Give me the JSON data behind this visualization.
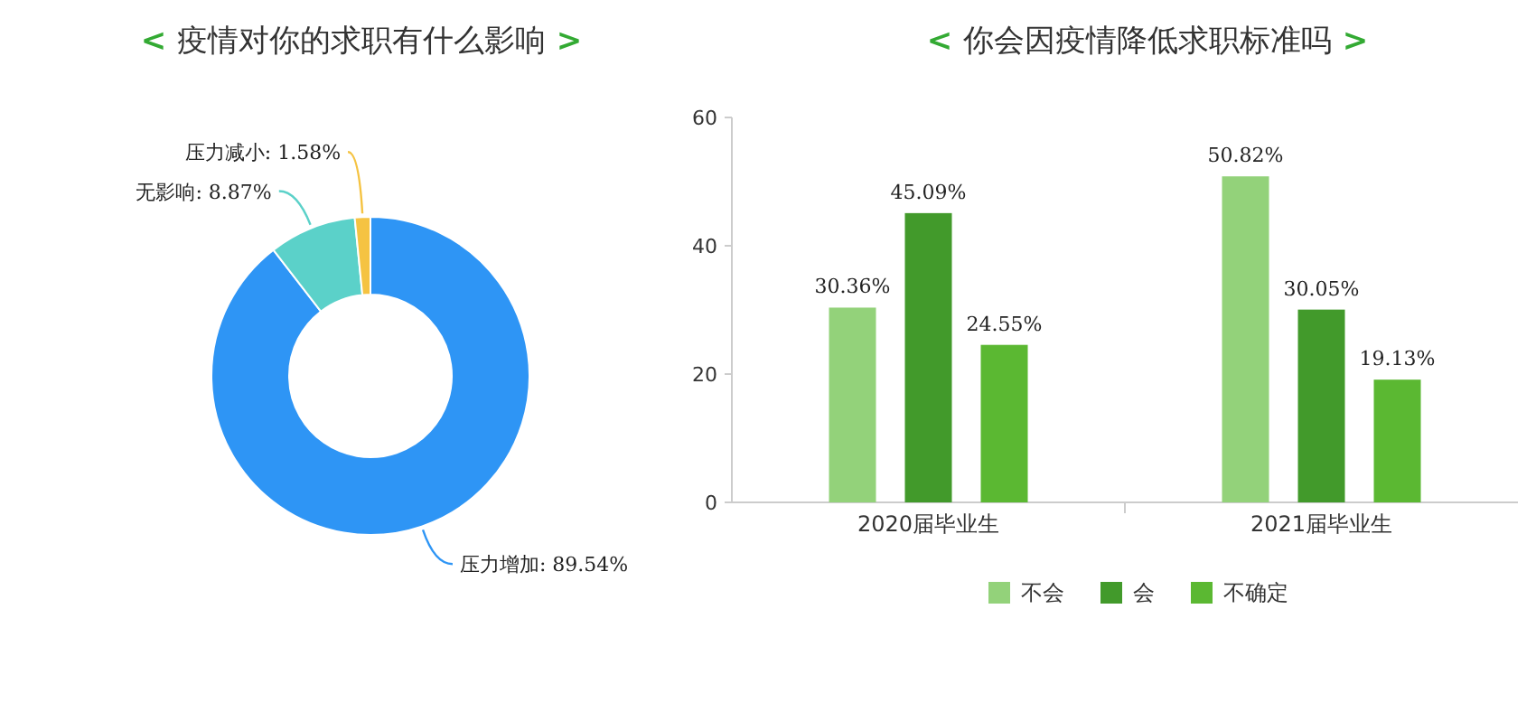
{
  "chart_data": [
    {
      "type": "donut",
      "title": "< 疫情对你的求职有什么影响 >",
      "categories": [
        "压力增加",
        "无影响",
        "压力减小"
      ],
      "values": [
        89.54,
        8.87,
        1.58
      ],
      "colors": [
        "#2e95f5",
        "#5bd1c9",
        "#f5c342"
      ],
      "value_labels": [
        "89.54%",
        "8.87%",
        "1.58%"
      ]
    },
    {
      "type": "bar",
      "title": "< 你会因疫情降低求职标准吗 >",
      "categories": [
        "2020届毕业生",
        "2021届毕业生"
      ],
      "series": [
        {
          "name": "不会",
          "color": "#93d27a",
          "values": [
            30.36,
            50.82
          ],
          "value_labels": [
            "30.36%",
            "50.82%"
          ]
        },
        {
          "name": "会",
          "color": "#429a2b",
          "values": [
            45.09,
            30.05
          ],
          "value_labels": [
            "45.09%",
            "30.05%"
          ]
        },
        {
          "name": "不确定",
          "color": "#5bb832",
          "values": [
            24.55,
            19.13
          ],
          "value_labels": [
            "24.55%",
            "19.13%"
          ]
        }
      ],
      "ylim": [
        0,
        60
      ],
      "yticks": [
        0,
        20,
        40,
        60
      ],
      "grid": false,
      "legend": "bottom"
    }
  ]
}
